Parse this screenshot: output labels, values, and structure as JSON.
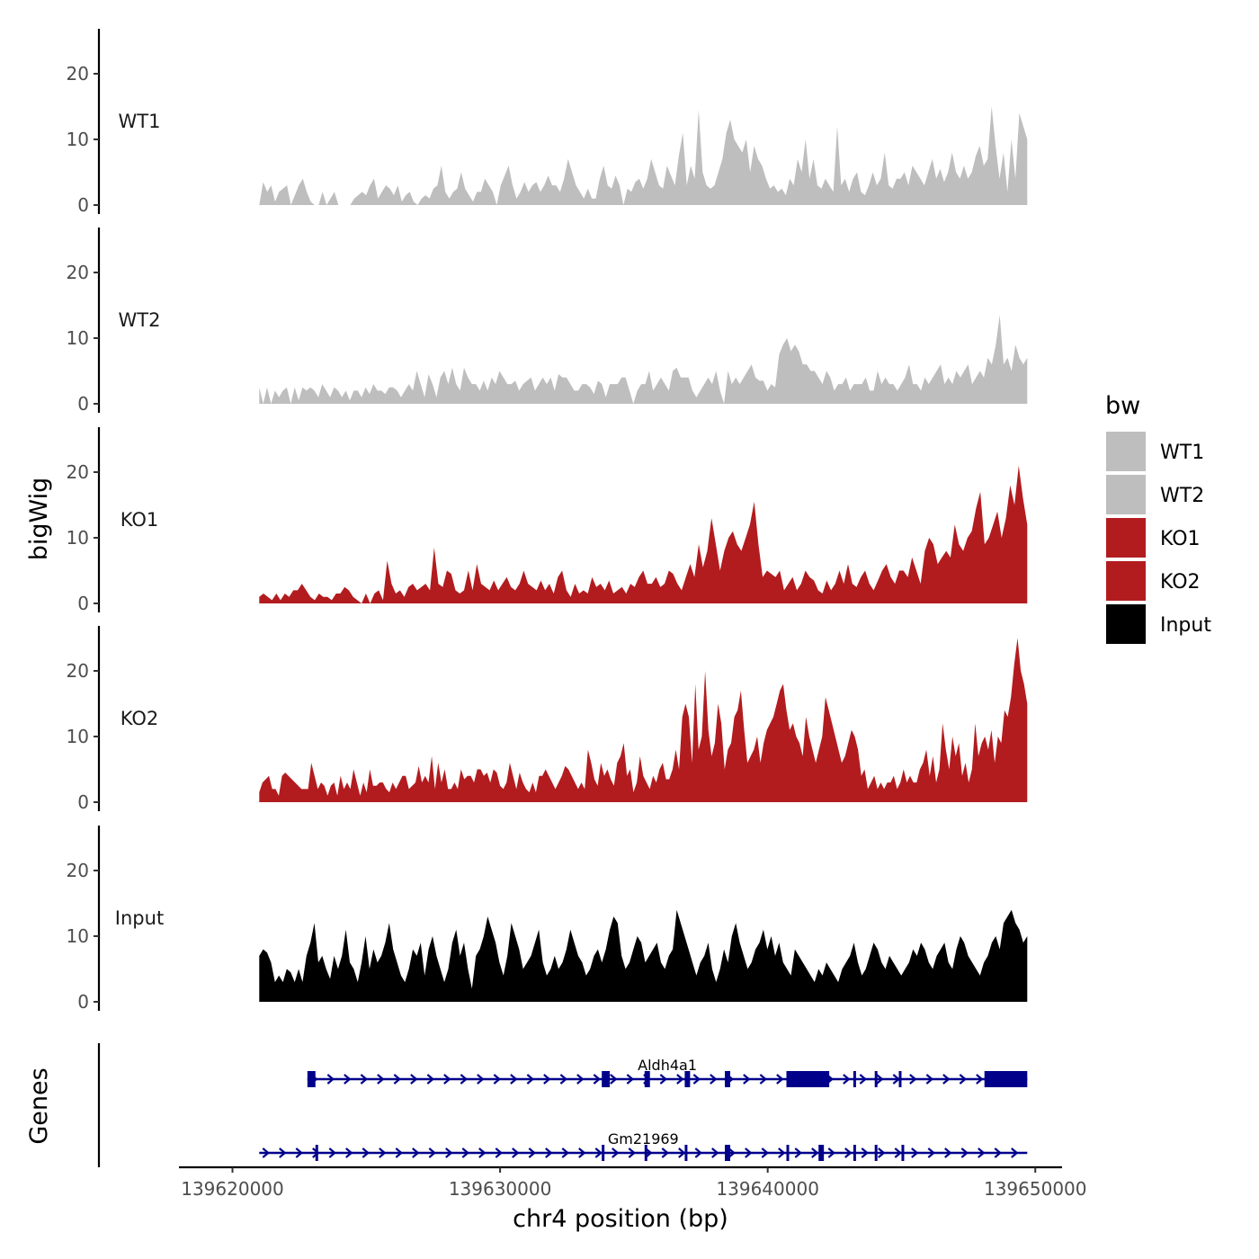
{
  "chart_data": {
    "type": "area",
    "ylabel": "bigWig",
    "xlabel": "chr4 position (bp)",
    "genes_label": "Genes",
    "xlim": [
      139618000,
      139651000
    ],
    "ylim": [
      0,
      27
    ],
    "x_ticks": [
      139620000,
      139630000,
      139640000,
      139650000
    ],
    "x_tick_labels": [
      "139620000",
      "139630000",
      "139640000",
      "139650000"
    ],
    "y_ticks": [
      0,
      10,
      20
    ],
    "y_tick_labels": [
      "0",
      "10",
      "20"
    ],
    "signal_range": [
      139621000,
      139649700
    ],
    "legend": {
      "title": "bw",
      "entries": [
        {
          "label": "WT1",
          "color": "#bebebe"
        },
        {
          "label": "WT2",
          "color": "#bebebe"
        },
        {
          "label": "KO1",
          "color": "#b21c1f"
        },
        {
          "label": "KO2",
          "color": "#b21c1f"
        },
        {
          "label": "Input",
          "color": "#000000"
        }
      ]
    },
    "series": [
      {
        "name": "WT1",
        "color": "#bebebe",
        "values": [
          0,
          3.5,
          2,
          3,
          0.5,
          2,
          2.5,
          3,
          0,
          1.5,
          3,
          4,
          2,
          0.5,
          0,
          0,
          2,
          0,
          1,
          2,
          0,
          0,
          0,
          0,
          1,
          1.5,
          2,
          1.5,
          3,
          4,
          1,
          2,
          3,
          2.5,
          1.5,
          3,
          0.5,
          1.5,
          2,
          0.5,
          0,
          1,
          1.5,
          1,
          2.5,
          3,
          6,
          2,
          1,
          2,
          2.5,
          5,
          2.5,
          1.5,
          0.5,
          2,
          2,
          4,
          3,
          2,
          0,
          3,
          4.5,
          6,
          3,
          1,
          2,
          3.5,
          2,
          3,
          3.5,
          2,
          3,
          4.5,
          3,
          3,
          2,
          4,
          7,
          5,
          3,
          2,
          1,
          2.5,
          1,
          1,
          4,
          6,
          3,
          2.5,
          4.5,
          3,
          0,
          2.5,
          2,
          3.5,
          4,
          2.5,
          4,
          7,
          5,
          3,
          2.5,
          6,
          4.5,
          3,
          7.5,
          11,
          3,
          6,
          4,
          14.5,
          5,
          3,
          2.5,
          3,
          5,
          7,
          11,
          13,
          10,
          9,
          8,
          10,
          5,
          9,
          7,
          6,
          4,
          2.5,
          3,
          2,
          2.5,
          1.5,
          4,
          3,
          7,
          5,
          10,
          4,
          7,
          3,
          2.5,
          4,
          3,
          2,
          12,
          3,
          4,
          2,
          4,
          5,
          2,
          1.5,
          3,
          5,
          3,
          4,
          8,
          3,
          2.5,
          4,
          4,
          5,
          3,
          6,
          5,
          4,
          3,
          5,
          7,
          4,
          5.5,
          3.5,
          5,
          8,
          5,
          4,
          6,
          4,
          5,
          7.5,
          9,
          6,
          7,
          15,
          9,
          4,
          8,
          2,
          10,
          4,
          14,
          12,
          10
        ]
      },
      {
        "name": "WT2",
        "color": "#bebebe",
        "values": [
          2.5,
          0,
          2.5,
          0,
          2,
          1,
          2,
          2.5,
          0,
          2.5,
          0.5,
          2.5,
          2,
          2.5,
          2,
          1,
          3,
          2,
          1,
          2.5,
          2,
          1,
          2,
          0.5,
          2,
          2,
          1,
          2.5,
          1.5,
          3,
          2,
          2,
          1.5,
          2.5,
          2.5,
          2,
          1,
          2,
          3,
          2,
          5,
          3,
          1,
          4.5,
          3,
          1,
          4,
          5,
          3,
          5.5,
          3,
          2,
          5.5,
          4,
          3,
          3,
          2,
          3.5,
          2,
          4,
          3,
          5,
          4,
          3,
          3,
          3.5,
          2,
          3,
          3.5,
          4,
          2,
          3,
          4,
          3,
          4,
          2,
          4.5,
          4,
          4,
          3,
          2,
          2,
          3,
          3,
          2.5,
          1.5,
          3.5,
          3,
          1,
          3,
          3,
          3,
          4,
          4,
          2,
          0,
          2,
          3,
          3,
          5,
          2,
          3,
          4,
          3,
          2,
          5,
          5.5,
          4,
          4,
          4,
          2,
          1,
          2,
          3,
          4,
          3,
          5,
          2,
          0,
          5,
          3,
          4,
          3,
          4,
          5,
          6,
          4,
          3.5,
          3.5,
          2,
          3,
          2.5,
          7.5,
          9,
          10,
          8,
          9,
          8,
          6,
          6,
          5,
          5,
          4,
          3,
          5,
          4,
          2,
          3,
          3,
          4,
          2,
          3,
          3,
          3,
          4,
          2,
          2,
          5,
          3,
          4,
          3,
          3,
          2,
          3,
          4,
          6,
          3,
          3,
          2,
          4,
          3,
          4,
          5,
          6,
          3,
          4,
          3,
          5,
          4,
          5,
          6,
          3,
          4,
          5,
          4,
          7,
          6,
          9,
          13.5,
          6,
          7,
          5,
          9,
          7,
          6,
          7
        ]
      },
      {
        "name": "KO1",
        "color": "#b21c1f",
        "values": [
          1,
          1.5,
          1,
          0.5,
          1.5,
          0.5,
          1.5,
          1,
          2,
          2,
          3,
          2,
          1,
          0.5,
          1.5,
          1,
          1,
          0.5,
          1.5,
          1.5,
          2.5,
          2,
          1,
          0.5,
          0,
          1.5,
          0,
          1.5,
          2,
          0.5,
          6.5,
          3,
          1.5,
          2,
          1,
          2.5,
          3,
          2,
          2.5,
          3,
          2,
          8.5,
          3,
          2.5,
          5,
          4.5,
          2,
          1.5,
          2,
          5,
          2,
          6,
          3,
          2.5,
          2,
          3.5,
          2,
          3,
          4,
          2.5,
          2,
          3,
          5,
          3,
          2.5,
          2,
          3.5,
          2,
          3,
          1.5,
          4,
          5,
          2,
          1,
          3,
          1.5,
          2,
          1.5,
          4,
          2.5,
          3,
          2,
          3.5,
          1.5,
          2,
          2.5,
          1.5,
          3,
          2.5,
          4,
          5,
          3,
          3,
          4,
          2.5,
          3,
          5,
          4.5,
          3,
          2,
          4,
          6,
          4,
          9,
          5.5,
          8,
          13,
          9,
          5,
          8,
          10,
          11,
          9,
          8,
          10,
          12,
          15.5,
          9,
          4,
          5,
          4.5,
          4,
          5,
          2,
          3,
          4,
          2,
          3,
          5,
          4,
          3.5,
          2,
          1.5,
          3.5,
          2,
          3,
          5,
          3,
          6,
          3,
          2.5,
          4,
          5,
          3,
          2,
          3.5,
          5,
          6,
          4,
          3,
          5,
          5,
          4,
          7,
          5,
          3,
          8,
          10,
          9,
          6,
          7,
          8,
          7,
          12,
          9,
          8,
          10,
          11,
          14.5,
          17,
          9,
          10,
          12,
          14,
          10,
          13,
          18,
          15,
          21,
          16,
          12
        ]
      },
      {
        "name": "KO2",
        "color": "#b21c1f",
        "values": [
          1.5,
          3,
          3.5,
          4,
          2,
          2,
          1,
          4,
          4.5,
          4,
          3.5,
          3,
          2.5,
          2,
          2,
          2,
          6,
          4,
          2,
          3,
          2.5,
          1,
          2.5,
          3,
          1,
          4,
          2,
          3,
          2,
          5,
          3,
          1,
          3,
          1.5,
          5,
          2.5,
          2.5,
          3,
          3,
          2,
          1.5,
          3,
          2,
          3,
          4,
          4,
          2,
          2.5,
          3,
          5.5,
          3,
          4,
          3,
          7,
          2,
          6,
          3,
          5,
          2,
          2,
          3,
          2,
          5,
          3.5,
          4,
          4,
          3,
          5,
          5,
          4,
          4.5,
          3,
          5,
          4.5,
          2.5,
          2,
          3,
          6,
          4,
          2,
          4.5,
          3,
          2,
          1.5,
          3,
          1.5,
          4,
          4,
          5,
          4,
          3,
          2,
          3,
          4,
          5.5,
          5,
          4,
          3,
          2,
          3,
          2,
          8,
          6,
          3.5,
          2.5,
          6,
          4,
          5,
          3.5,
          2.5,
          6,
          7,
          9,
          4,
          5,
          1.5,
          3,
          7,
          4,
          3,
          2,
          4,
          3,
          5,
          6,
          3.5,
          3.5,
          5,
          8,
          5,
          13,
          15,
          13,
          6,
          18,
          8,
          10,
          20,
          11,
          7,
          9,
          15,
          12,
          5,
          8,
          9,
          13,
          14,
          17,
          11,
          6,
          7,
          8,
          10,
          6,
          9,
          11,
          12,
          13,
          15,
          17,
          18,
          14,
          11,
          12,
          10,
          9,
          7,
          13,
          10,
          8,
          6,
          8,
          10,
          16,
          14,
          12,
          10,
          8,
          6,
          7,
          9,
          11,
          10,
          8,
          4,
          5,
          2,
          3,
          4,
          2,
          3,
          2,
          3,
          3,
          4,
          2,
          3,
          5,
          3,
          4,
          3,
          3,
          5,
          6,
          8,
          4,
          7,
          3,
          5,
          12,
          8,
          5,
          10,
          7,
          9,
          4,
          6,
          3,
          5,
          12,
          7,
          9,
          10,
          8,
          11,
          6,
          10,
          9,
          14,
          13,
          16,
          21,
          25,
          20,
          18,
          15
        ]
      },
      {
        "name": "Input",
        "color": "#000000",
        "values": [
          7,
          8,
          7.5,
          6,
          3,
          4,
          3,
          5,
          4.5,
          3,
          5,
          3,
          7,
          9,
          12,
          6,
          7,
          5,
          3.5,
          7,
          5,
          7,
          11,
          6,
          5,
          3,
          6,
          10,
          5,
          8,
          6,
          7,
          9,
          12,
          8,
          6,
          4,
          3,
          5,
          8,
          7,
          9,
          4,
          8,
          10,
          7,
          5,
          3,
          5,
          9,
          11,
          7,
          9,
          5,
          2,
          7,
          8,
          10,
          13,
          11,
          9,
          6,
          4,
          7,
          12,
          10,
          8,
          5,
          6,
          7,
          9,
          11,
          6,
          4,
          5,
          7,
          5,
          6,
          8,
          11,
          9,
          7,
          6,
          4,
          5,
          7,
          8,
          6,
          8,
          11,
          13,
          12,
          7,
          5,
          6,
          8,
          10,
          9,
          6,
          7,
          8,
          9,
          6,
          5,
          7,
          8,
          14,
          12,
          10,
          8,
          6,
          4,
          6,
          7,
          9,
          5,
          3,
          5,
          8,
          6,
          10,
          12,
          9,
          7,
          5,
          6,
          8,
          9,
          11,
          8,
          10,
          7,
          9,
          6,
          5,
          4,
          8,
          7,
          6,
          5,
          4,
          3,
          5,
          4,
          6,
          5,
          4,
          3,
          5,
          6,
          7,
          9,
          6,
          4,
          5,
          7,
          9,
          8,
          6,
          5,
          7,
          6,
          5,
          4,
          5,
          6,
          8,
          7,
          9,
          8,
          6,
          5,
          7,
          8,
          9,
          6,
          5,
          8,
          10,
          9,
          7,
          6,
          5,
          4,
          6,
          7,
          9,
          10,
          8,
          12,
          13,
          14,
          12,
          11,
          9,
          10
        ]
      }
    ],
    "genes": [
      {
        "name": "Aldh4a1",
        "start": 139622800,
        "end": 139649700,
        "exons": [
          [
            139622800,
            139623100
          ],
          [
            139633800,
            139634100
          ],
          [
            139635400,
            139635600
          ],
          [
            139636900,
            139637100
          ],
          [
            139638400,
            139638600
          ],
          [
            139640700,
            139642300
          ],
          [
            139643200,
            139643300
          ],
          [
            139644000,
            139644100
          ],
          [
            139644900,
            139645000
          ],
          [
            139648100,
            139649700
          ]
        ]
      },
      {
        "name": "Gm21969",
        "start": 139621000,
        "end": 139649700,
        "exons": [
          [
            139623100,
            139623200
          ],
          [
            139633800,
            139633900
          ],
          [
            139635400,
            139635500
          ],
          [
            139636900,
            139637000
          ],
          [
            139638400,
            139638600
          ],
          [
            139640700,
            139640800
          ],
          [
            139641900,
            139642100
          ],
          [
            139643200,
            139643300
          ],
          [
            139644000,
            139644100
          ],
          [
            139645000,
            139645100
          ]
        ]
      }
    ]
  }
}
